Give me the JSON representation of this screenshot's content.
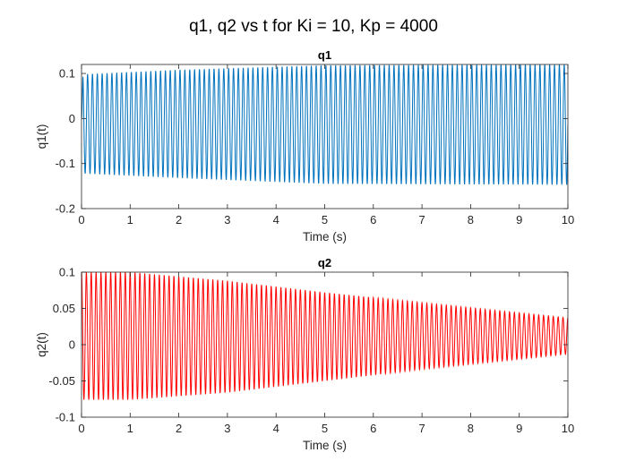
{
  "figure": {
    "suptitle": "q1, q2 vs t for Ki = 10, Kp = 4000"
  },
  "chart_data": [
    {
      "type": "line",
      "title": "q1",
      "xlabel": "Time (s)",
      "ylabel": "q1(t)",
      "xlim": [
        0,
        10
      ],
      "ylim": [
        -0.2,
        0.12
      ],
      "xticks": [
        0,
        1,
        2,
        3,
        4,
        5,
        6,
        7,
        8,
        9,
        10
      ],
      "xtick_labels": [
        "0",
        "1",
        "2",
        "3",
        "4",
        "5",
        "6",
        "7",
        "8",
        "9",
        "10"
      ],
      "yticks": [
        0.1,
        0,
        -0.1,
        -0.2
      ],
      "ytick_labels": [
        "0.1",
        "0",
        "-0.1",
        "-0.2"
      ],
      "grid": false,
      "color": "#0072BD",
      "series": [
        {
          "oscillation_frequency_hz": 10,
          "envelope_upper": {
            "t": [
              0,
              2,
              5,
              10
            ],
            "value": [
              0.098,
              0.108,
              0.118,
              0.12
            ]
          },
          "envelope_lower": {
            "t": [
              0,
              2,
              5,
              10
            ],
            "value": [
              -0.122,
              -0.132,
              -0.145,
              -0.147
            ]
          },
          "start_value": 0.0
        }
      ]
    },
    {
      "type": "line",
      "title": "q2",
      "xlabel": "Time (s)",
      "ylabel": "q2(t)",
      "xlim": [
        0,
        10
      ],
      "ylim": [
        -0.1,
        0.1
      ],
      "xticks": [
        0,
        1,
        2,
        3,
        4,
        5,
        6,
        7,
        8,
        9,
        10
      ],
      "xtick_labels": [
        "0",
        "1",
        "2",
        "3",
        "4",
        "5",
        "6",
        "7",
        "8",
        "9",
        "10"
      ],
      "yticks": [
        0.1,
        0.05,
        0,
        -0.05,
        -0.1
      ],
      "ytick_labels": [
        "0.1",
        "0.05",
        "0",
        "-0.05",
        "-0.1"
      ],
      "grid": false,
      "color": "#FF0000",
      "series": [
        {
          "oscillation_frequency_hz": 10,
          "envelope_upper": {
            "t": [
              0,
              1,
              3,
              5,
              7,
              10
            ],
            "value": [
              0.1,
              0.1,
              0.088,
              0.072,
              0.058,
              0.037
            ]
          },
          "envelope_lower": {
            "t": [
              0,
              1,
              3,
              5,
              7,
              10
            ],
            "value": [
              -0.076,
              -0.076,
              -0.066,
              -0.05,
              -0.034,
              -0.013
            ]
          },
          "start_value": 0.1
        }
      ]
    }
  ]
}
